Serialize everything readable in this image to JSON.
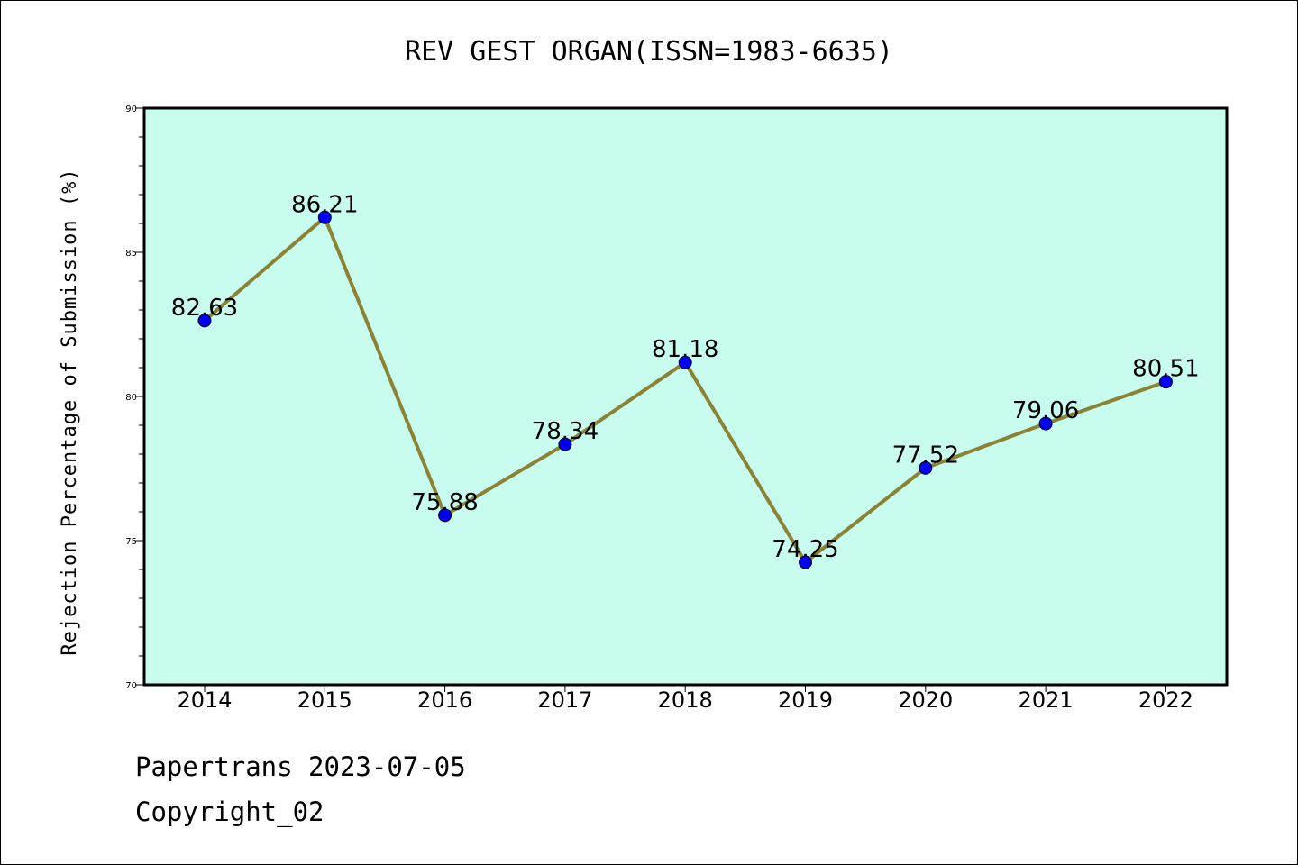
{
  "chart_data": {
    "type": "line",
    "title": "REV GEST ORGAN(ISSN=1983-6635)",
    "xlabel": "",
    "ylabel": "Rejection Percentage of Submission (%)",
    "categories": [
      "2014",
      "2015",
      "2016",
      "2017",
      "2018",
      "2019",
      "2020",
      "2021",
      "2022"
    ],
    "values": [
      82.63,
      86.21,
      75.88,
      78.34,
      81.18,
      74.25,
      77.52,
      79.06,
      80.51
    ],
    "data_labels": [
      "82.63",
      "86.21",
      "75.88",
      "78.34",
      "81.18",
      "74.25",
      "77.52",
      "79.06",
      "80.51"
    ],
    "ylim": [
      70,
      90
    ],
    "yticks": [
      70,
      75,
      80,
      85,
      90
    ],
    "ytick_labels": [
      "70",
      "75",
      "80",
      "85",
      "90"
    ],
    "grid": false,
    "legend": "none",
    "colors": {
      "plot_background": "#c8fcee",
      "line": "#8c8234",
      "marker": "#0000ee",
      "axes": "#000000"
    }
  },
  "footer": {
    "line1": "Papertrans 2023-07-05",
    "line2": "Copyright_02"
  }
}
